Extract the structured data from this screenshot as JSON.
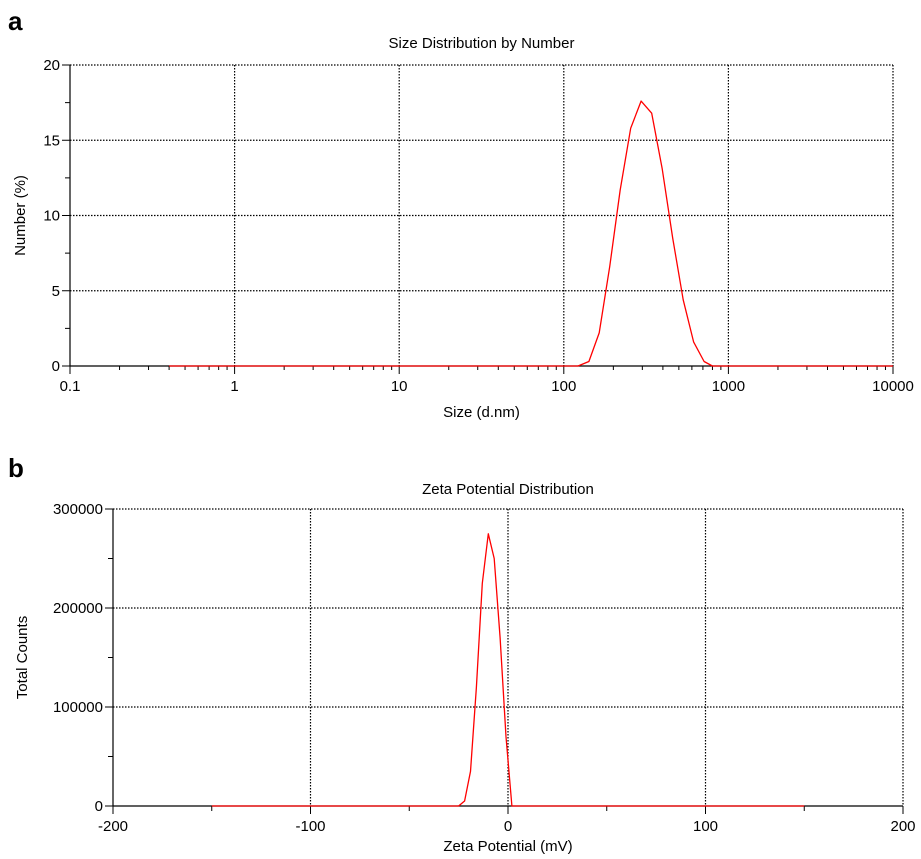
{
  "chart_data": [
    {
      "panel": "a",
      "type": "line",
      "title": "Size Distribution by Number",
      "xlabel": "Size (d.nm)",
      "ylabel": "Number (%)",
      "xscale": "log",
      "xlim": [
        0.1,
        10000
      ],
      "ylim": [
        0,
        20
      ],
      "grid": true,
      "xticks": [
        0.1,
        1,
        10,
        100,
        1000,
        10000
      ],
      "xtick_labels": [
        "0.1",
        "1",
        "10",
        "100",
        "1000",
        "10000"
      ],
      "yticks": [
        0,
        5,
        10,
        15,
        20
      ],
      "ytick_labels": [
        "0",
        "5",
        "10",
        "15",
        "20"
      ],
      "series": [
        {
          "color": "#ff0000",
          "x": [
            0.4,
            1,
            10,
            100,
            122,
            142,
            164,
            190,
            220,
            255,
            295,
            342,
            396,
            459,
            531,
            615,
            712,
            800,
            1000,
            10000
          ],
          "y": [
            0,
            0,
            0,
            0,
            0,
            0.3,
            2.2,
            6.6,
            11.7,
            15.8,
            17.6,
            16.8,
            13.1,
            8.5,
            4.4,
            1.6,
            0.3,
            0,
            0,
            0
          ]
        }
      ]
    },
    {
      "panel": "b",
      "type": "line",
      "title": "Zeta Potential Distribution",
      "xlabel": "Zeta Potential (mV)",
      "ylabel": "Total Counts",
      "xlim": [
        -200,
        200
      ],
      "ylim": [
        0,
        300000
      ],
      "grid": true,
      "xticks": [
        -200,
        -100,
        0,
        100,
        200
      ],
      "xtick_labels": [
        "-200",
        "-100",
        "0",
        "100",
        "200"
      ],
      "yticks": [
        0,
        100000,
        200000,
        300000
      ],
      "ytick_labels": [
        "0",
        "100000",
        "200000",
        "300000"
      ],
      "series": [
        {
          "color": "#ff0000",
          "x": [
            -150,
            -25,
            -22,
            -19,
            -16,
            -13,
            -10,
            -7,
            -4,
            -1,
            2,
            150
          ],
          "y": [
            0,
            0,
            5000,
            35000,
            120000,
            225000,
            275000,
            250000,
            170000,
            70000,
            0,
            0
          ]
        }
      ]
    }
  ]
}
